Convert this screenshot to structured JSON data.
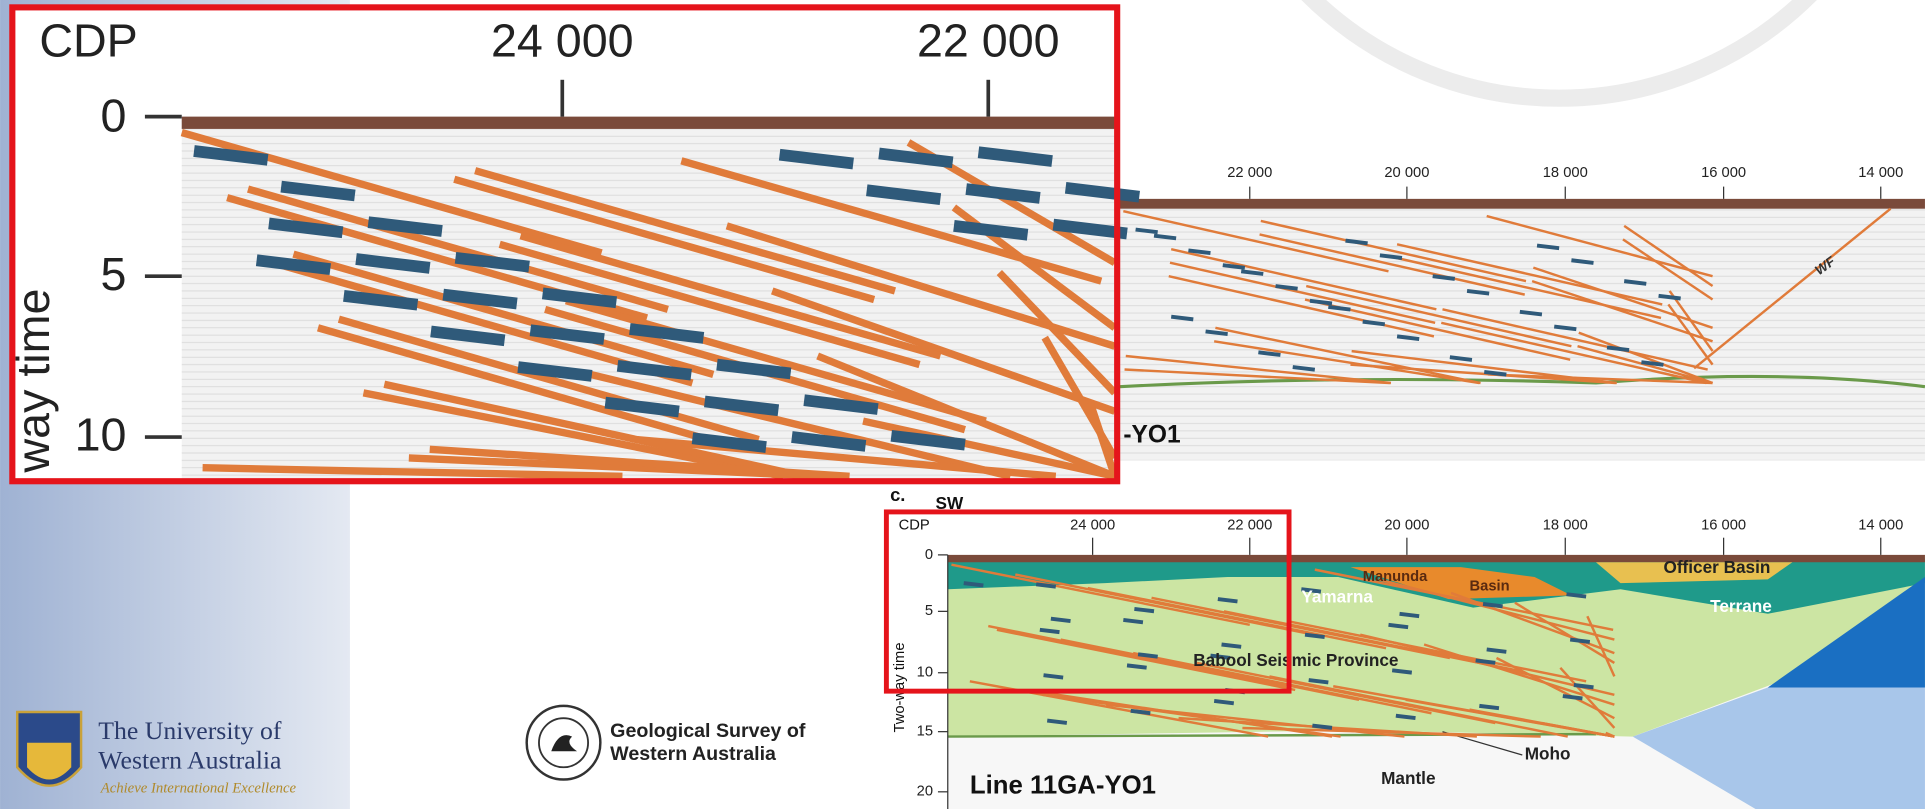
{
  "zoom_inset": {
    "axis_title": "CDP",
    "x_ticks": [
      "24 000",
      "22 000"
    ],
    "y_ticks": [
      "0",
      "5",
      "10"
    ],
    "y_title": "way time",
    "line_fragment": "-YO1"
  },
  "upper_section": {
    "x_ticks": [
      "22 000",
      "20 000",
      "18 000",
      "16 000",
      "14 000"
    ],
    "fault_label": "WF"
  },
  "lower_section": {
    "panel_label": "c.",
    "direction": "SW",
    "axis_title": "CDP",
    "x_ticks": [
      "24 000",
      "22 000",
      "20 000",
      "18 000",
      "16 000",
      "14 000"
    ],
    "y_ticks": [
      "0",
      "5",
      "10",
      "15",
      "20"
    ],
    "y_title": "Two-way time",
    "labels": {
      "manunda": "Manunda",
      "basin_small": "Basin",
      "yamarna": "Yamarna",
      "officer": "Officer Basin",
      "terrane": "Terrane",
      "babool": "Babool Seismic Province",
      "moho": "Moho",
      "mantle": "Mantle",
      "line": "Line 11GA-YO1"
    }
  },
  "logos": {
    "uwa_name_1": "The University of",
    "uwa_name_2": "Western Australia",
    "uwa_tagline": "Achieve International Excellence",
    "gswa_1": "Geological Survey of",
    "gswa_2": "Western Australia"
  }
}
